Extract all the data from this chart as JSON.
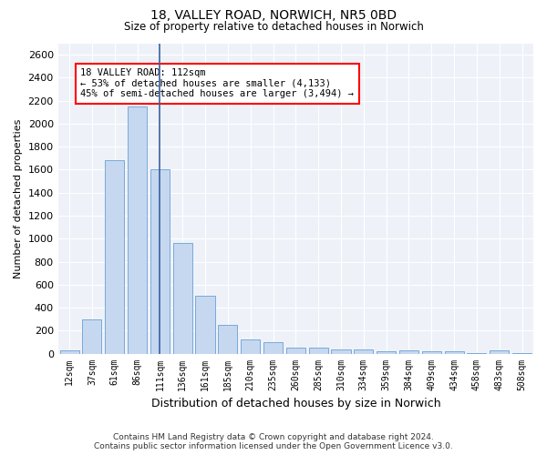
{
  "title_line1": "18, VALLEY ROAD, NORWICH, NR5 0BD",
  "title_line2": "Size of property relative to detached houses in Norwich",
  "xlabel": "Distribution of detached houses by size in Norwich",
  "ylabel": "Number of detached properties",
  "categories": [
    "12sqm",
    "37sqm",
    "61sqm",
    "86sqm",
    "111sqm",
    "136sqm",
    "161sqm",
    "185sqm",
    "210sqm",
    "235sqm",
    "260sqm",
    "285sqm",
    "310sqm",
    "334sqm",
    "359sqm",
    "384sqm",
    "409sqm",
    "434sqm",
    "458sqm",
    "483sqm",
    "508sqm"
  ],
  "values": [
    25,
    300,
    1680,
    2150,
    1600,
    960,
    500,
    250,
    120,
    100,
    50,
    50,
    35,
    35,
    20,
    25,
    20,
    20,
    5,
    25,
    5
  ],
  "bar_color": "#c5d8f0",
  "bar_edge_color": "#6b9fd4",
  "highlight_index": 4,
  "highlight_line_color": "#3a5fa0",
  "annotation_text": "18 VALLEY ROAD: 112sqm\n← 53% of detached houses are smaller (4,133)\n45% of semi-detached houses are larger (3,494) →",
  "annotation_box_color": "white",
  "annotation_box_edge_color": "red",
  "footer_line1": "Contains HM Land Registry data © Crown copyright and database right 2024.",
  "footer_line2": "Contains public sector information licensed under the Open Government Licence v3.0.",
  "ylim": [
    0,
    2700
  ],
  "yticks": [
    0,
    200,
    400,
    600,
    800,
    1000,
    1200,
    1400,
    1600,
    1800,
    2000,
    2200,
    2400,
    2600
  ],
  "figsize": [
    6.0,
    5.0
  ],
  "dpi": 100,
  "background_color": "#ffffff",
  "plot_background_color": "#eef2f8"
}
